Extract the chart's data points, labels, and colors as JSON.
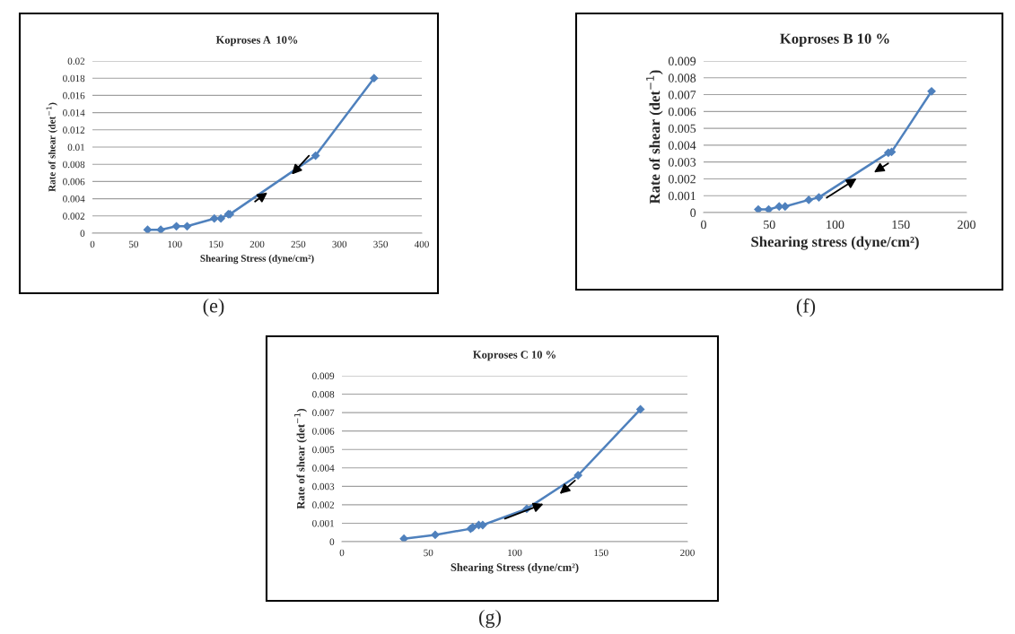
{
  "chart_data": [
    {
      "type": "line",
      "title": "Koproses A  10%",
      "xlabel": "Shearing Stress (dyne/cm²)",
      "ylabel": "Rate of shear (det$^{−1}$)",
      "marker": "diamond",
      "line_style": "solid",
      "grid": "y",
      "x": [
        67,
        83,
        102,
        115,
        148,
        156,
        165,
        167,
        271,
        342
      ],
      "series": [
        {
          "color": "#4f81bd",
          "values": [
            0.0004,
            0.0004,
            0.0008,
            0.0008,
            0.0017,
            0.0017,
            0.0022,
            0.0022,
            0.009,
            0.018
          ]
        }
      ],
      "xlim": [
        0,
        400
      ],
      "xticks": [
        0,
        50,
        100,
        150,
        200,
        250,
        300,
        350,
        400
      ],
      "ylim": [
        0,
        0.02
      ],
      "yticks": [
        0,
        0.002,
        0.004,
        0.006,
        0.008,
        0.01,
        0.012,
        0.014,
        0.016,
        0.018,
        0.02
      ],
      "annotations": [
        "(e)"
      ]
    },
    {
      "type": "line",
      "title": "Koproses B 10 %",
      "xlabel": "Shearing stress (dyne/cm²)",
      "ylabel": "Rate of shear (det$^{−1}$)",
      "marker": "diamond",
      "line_style": "solid",
      "grid": "y",
      "x": [
        41.6,
        49.5,
        57.5,
        62,
        80,
        87.7,
        140.5,
        143,
        173.4
      ],
      "series": [
        {
          "color": "#4f81bd",
          "values": [
            0.00018,
            0.00018,
            0.00036,
            0.00036,
            0.00075,
            0.0009,
            0.00355,
            0.0036,
            0.0072
          ]
        }
      ],
      "xlim": [
        0,
        200
      ],
      "xticks": [
        0,
        50,
        100,
        150,
        200
      ],
      "ylim": [
        0,
        0.009
      ],
      "yticks": [
        0,
        0.001,
        0.002,
        0.003,
        0.004,
        0.005,
        0.006,
        0.007,
        0.008,
        0.009
      ],
      "annotations": [
        "(f)"
      ]
    },
    {
      "type": "line",
      "title": "Koproses C 10 %",
      "xlabel": "Shearing Stress (dyne/cm²)",
      "ylabel": "Rate of shear (det$^{−1}$)",
      "marker": "diamond",
      "line_style": "solid",
      "grid": "y",
      "x": [
        35.9,
        54,
        74.5,
        75.7,
        79.2,
        81.5,
        107,
        136.7,
        172.8
      ],
      "series": [
        {
          "color": "#4f81bd",
          "values": [
            0.00016,
            0.00037,
            0.0007,
            0.00078,
            0.0009,
            0.0009,
            0.00178,
            0.0036,
            0.00718
          ]
        }
      ],
      "xlim": [
        0,
        200
      ],
      "xticks": [
        0,
        50,
        100,
        150,
        200
      ],
      "ylim": [
        0,
        0.009
      ],
      "yticks": [
        0,
        0.001,
        0.002,
        0.003,
        0.004,
        0.005,
        0.006,
        0.007,
        0.008,
        0.009
      ],
      "annotations": [
        "(g)"
      ]
    }
  ]
}
